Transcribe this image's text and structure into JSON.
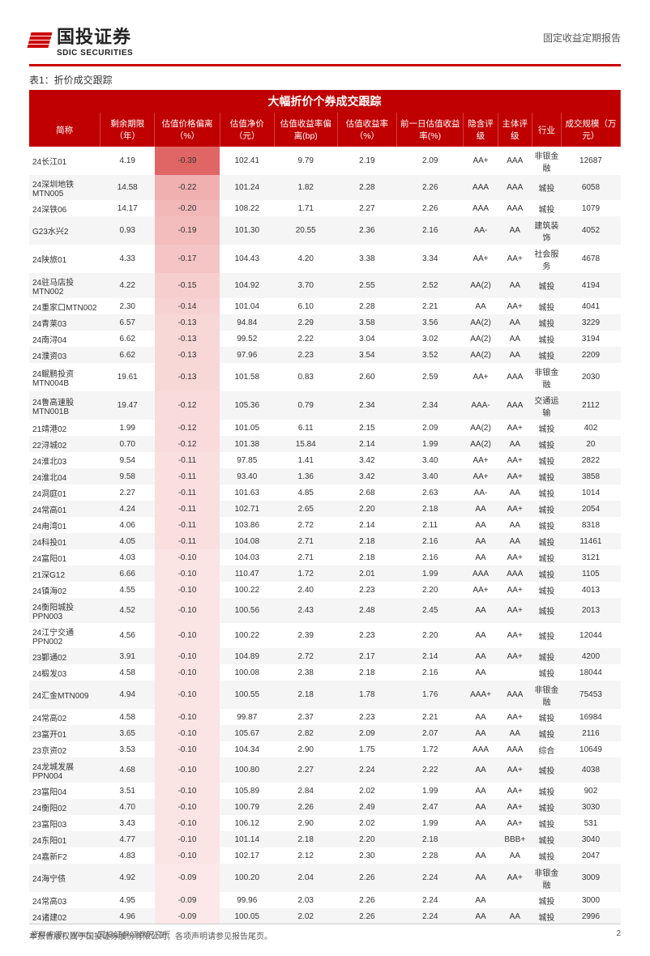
{
  "header": {
    "company_name_cn": "国投证券",
    "company_name_en": "SDIC SECURITIES",
    "report_type": "固定收益定期报告"
  },
  "table": {
    "caption": "表1：折价成交跟踪",
    "super_header": "大幅折价个券成交跟踪",
    "columns": [
      "简称",
      "剩余期限（年）",
      "估值价格偏离（%）",
      "估值净价（元）",
      "估值收益率偏离(bp)",
      "估值收益率（%）",
      "前一日估值收益率(%)",
      "隐含评级",
      "主体评级",
      "行业",
      "成交规模（万元）"
    ],
    "rows": [
      [
        "24长江01",
        "4.19",
        "-0.39",
        "102.41",
        "9.79",
        "2.19",
        "2.09",
        "AA+",
        "AAA",
        "非银金融",
        "12687"
      ],
      [
        "24深圳地铁MTN005",
        "14.58",
        "-0.22",
        "101.24",
        "1.82",
        "2.28",
        "2.26",
        "AAA",
        "AAA",
        "城投",
        "6058"
      ],
      [
        "24深铁06",
        "14.17",
        "-0.20",
        "108.22",
        "1.71",
        "2.27",
        "2.26",
        "AAA",
        "AAA",
        "城投",
        "1079"
      ],
      [
        "G23水兴2",
        "0.93",
        "-0.19",
        "101.30",
        "20.55",
        "2.36",
        "2.16",
        "AA-",
        "AA",
        "建筑装饰",
        "4052"
      ],
      [
        "24陕旅01",
        "4.33",
        "-0.17",
        "104.43",
        "4.20",
        "3.38",
        "3.34",
        "AA+",
        "AA+",
        "社会服务",
        "4678"
      ],
      [
        "24驻马店投MTN002",
        "4.22",
        "-0.15",
        "104.92",
        "3.70",
        "2.55",
        "2.52",
        "AA(2)",
        "AA",
        "城投",
        "4194"
      ],
      [
        "24重家口MTN002",
        "2.30",
        "-0.14",
        "101.04",
        "6.10",
        "2.28",
        "2.21",
        "AA",
        "AA+",
        "城投",
        "4041"
      ],
      [
        "24青莱03",
        "6.57",
        "-0.13",
        "94.84",
        "2.29",
        "3.58",
        "3.56",
        "AA(2)",
        "AA",
        "城投",
        "3229"
      ],
      [
        "24南浔04",
        "6.62",
        "-0.13",
        "99.52",
        "2.22",
        "3.04",
        "3.02",
        "AA(2)",
        "AA",
        "城投",
        "3194"
      ],
      [
        "24濮资03",
        "6.62",
        "-0.13",
        "97.96",
        "2.23",
        "3.54",
        "3.52",
        "AA(2)",
        "AA",
        "城投",
        "2209"
      ],
      [
        "24鲲鹏投资MTN004B",
        "19.61",
        "-0.13",
        "101.58",
        "0.83",
        "2.60",
        "2.59",
        "AA+",
        "AAA",
        "非银金融",
        "2030"
      ],
      [
        "24鲁高速股MTN001B",
        "19.47",
        "-0.12",
        "105.36",
        "0.79",
        "2.34",
        "2.34",
        "AAA-",
        "AAA",
        "交通运输",
        "2112"
      ],
      [
        "21靖港02",
        "1.99",
        "-0.12",
        "101.05",
        "6.11",
        "2.15",
        "2.09",
        "AA(2)",
        "AA+",
        "城投",
        "402"
      ],
      [
        "22浔城02",
        "0.70",
        "-0.12",
        "101.38",
        "15.84",
        "2.14",
        "1.99",
        "AA(2)",
        "AA",
        "城投",
        "20"
      ],
      [
        "24淮北03",
        "9.54",
        "-0.11",
        "97.85",
        "1.41",
        "3.42",
        "3.40",
        "AA+",
        "AA+",
        "城投",
        "2822"
      ],
      [
        "24淮北04",
        "9.58",
        "-0.11",
        "93.40",
        "1.36",
        "3.42",
        "3.40",
        "AA+",
        "AA+",
        "城投",
        "3858"
      ],
      [
        "24洞庭01",
        "2.27",
        "-0.11",
        "101.63",
        "4.85",
        "2.68",
        "2.63",
        "AA-",
        "AA",
        "城投",
        "1014"
      ],
      [
        "24常高01",
        "4.24",
        "-0.11",
        "102.71",
        "2.65",
        "2.20",
        "2.18",
        "AA",
        "AA+",
        "城投",
        "2054"
      ],
      [
        "24甪湾01",
        "4.06",
        "-0.11",
        "103.86",
        "2.72",
        "2.14",
        "2.11",
        "AA",
        "AA",
        "城投",
        "8318"
      ],
      [
        "24科投01",
        "4.05",
        "-0.11",
        "104.08",
        "2.71",
        "2.18",
        "2.16",
        "AA",
        "AA",
        "城投",
        "11461"
      ],
      [
        "24富阳01",
        "4.03",
        "-0.10",
        "104.03",
        "2.71",
        "2.18",
        "2.16",
        "AA",
        "AA+",
        "城投",
        "3121"
      ],
      [
        "21深G12",
        "6.66",
        "-0.10",
        "110.47",
        "1.72",
        "2.01",
        "1.99",
        "AAA",
        "AAA",
        "城投",
        "1105"
      ],
      [
        "24镇海02",
        "4.55",
        "-0.10",
        "100.22",
        "2.40",
        "2.23",
        "2.20",
        "AA+",
        "AA+",
        "城投",
        "4013"
      ],
      [
        "24衡阳城投PPN003",
        "4.52",
        "-0.10",
        "100.56",
        "2.43",
        "2.48",
        "2.45",
        "AA",
        "AA+",
        "城投",
        "2013"
      ],
      [
        "24江宁交通PPN002",
        "4.56",
        "-0.10",
        "100.22",
        "2.39",
        "2.23",
        "2.20",
        "AA",
        "AA+",
        "城投",
        "12044"
      ],
      [
        "23鄞通02",
        "3.91",
        "-0.10",
        "104.89",
        "2.72",
        "2.17",
        "2.14",
        "AA",
        "AA+",
        "城投",
        "4200"
      ],
      [
        "24椴发03",
        "4.58",
        "-0.10",
        "100.08",
        "2.38",
        "2.18",
        "2.16",
        "AA",
        "",
        "城投",
        "18044"
      ],
      [
        "24汇金MTN009",
        "4.94",
        "-0.10",
        "100.55",
        "2.18",
        "1.78",
        "1.76",
        "AAA+",
        "AAA",
        "非银金融",
        "75453"
      ],
      [
        "24常高02",
        "4.58",
        "-0.10",
        "99.87",
        "2.37",
        "2.23",
        "2.21",
        "AA",
        "AA+",
        "城投",
        "16984"
      ],
      [
        "23富开01",
        "3.65",
        "-0.10",
        "105.67",
        "2.82",
        "2.09",
        "2.07",
        "AA",
        "AA",
        "城投",
        "2116"
      ],
      [
        "23京资02",
        "3.53",
        "-0.10",
        "104.34",
        "2.90",
        "1.75",
        "1.72",
        "AAA",
        "AAA",
        "综合",
        "10649"
      ],
      [
        "24龙城发展PPN004",
        "4.68",
        "-0.10",
        "100.80",
        "2.27",
        "2.24",
        "2.22",
        "AA",
        "AA+",
        "城投",
        "4038"
      ],
      [
        "23富阳04",
        "3.51",
        "-0.10",
        "105.89",
        "2.84",
        "2.02",
        "1.99",
        "AA",
        "AA+",
        "城投",
        "902"
      ],
      [
        "24衡阳02",
        "4.70",
        "-0.10",
        "100.79",
        "2.26",
        "2.49",
        "2.47",
        "AA",
        "AA+",
        "城投",
        "3030"
      ],
      [
        "23富阳03",
        "3.43",
        "-0.10",
        "106.12",
        "2.90",
        "2.02",
        "1.99",
        "AA",
        "AA+",
        "城投",
        "531"
      ],
      [
        "24东阳01",
        "4.77",
        "-0.10",
        "101.14",
        "2.18",
        "2.20",
        "2.18",
        "",
        "BBB+",
        "城投",
        "3040"
      ],
      [
        "24嘉新F2",
        "4.83",
        "-0.10",
        "102.17",
        "2.12",
        "2.30",
        "2.28",
        "AA",
        "AA",
        "城投",
        "2047"
      ],
      [
        "24海宁债",
        "4.92",
        "-0.09",
        "100.20",
        "2.04",
        "2.26",
        "2.24",
        "AA",
        "AA+",
        "非银金融",
        "3009"
      ],
      [
        "24常高03",
        "4.95",
        "-0.09",
        "99.96",
        "2.03",
        "2.26",
        "2.24",
        "AA",
        "",
        "城投",
        "3000"
      ],
      [
        "24诸建02",
        "4.96",
        "-0.09",
        "100.05",
        "2.02",
        "2.26",
        "2.24",
        "AA",
        "AA",
        "城投",
        "2996"
      ]
    ],
    "deviation_col_idx": 2,
    "deviation_gradient": {
      "min": -0.39,
      "max": -0.09,
      "color_strong": "#e06666",
      "color_weak": "#fce8e8"
    }
  },
  "source": "资料来源：Wind，国投证券证券研究所",
  "footer": {
    "text": "本报告版权属于国投证券股份有限公司，各项声明请参见报告尾页。",
    "page": "2"
  }
}
